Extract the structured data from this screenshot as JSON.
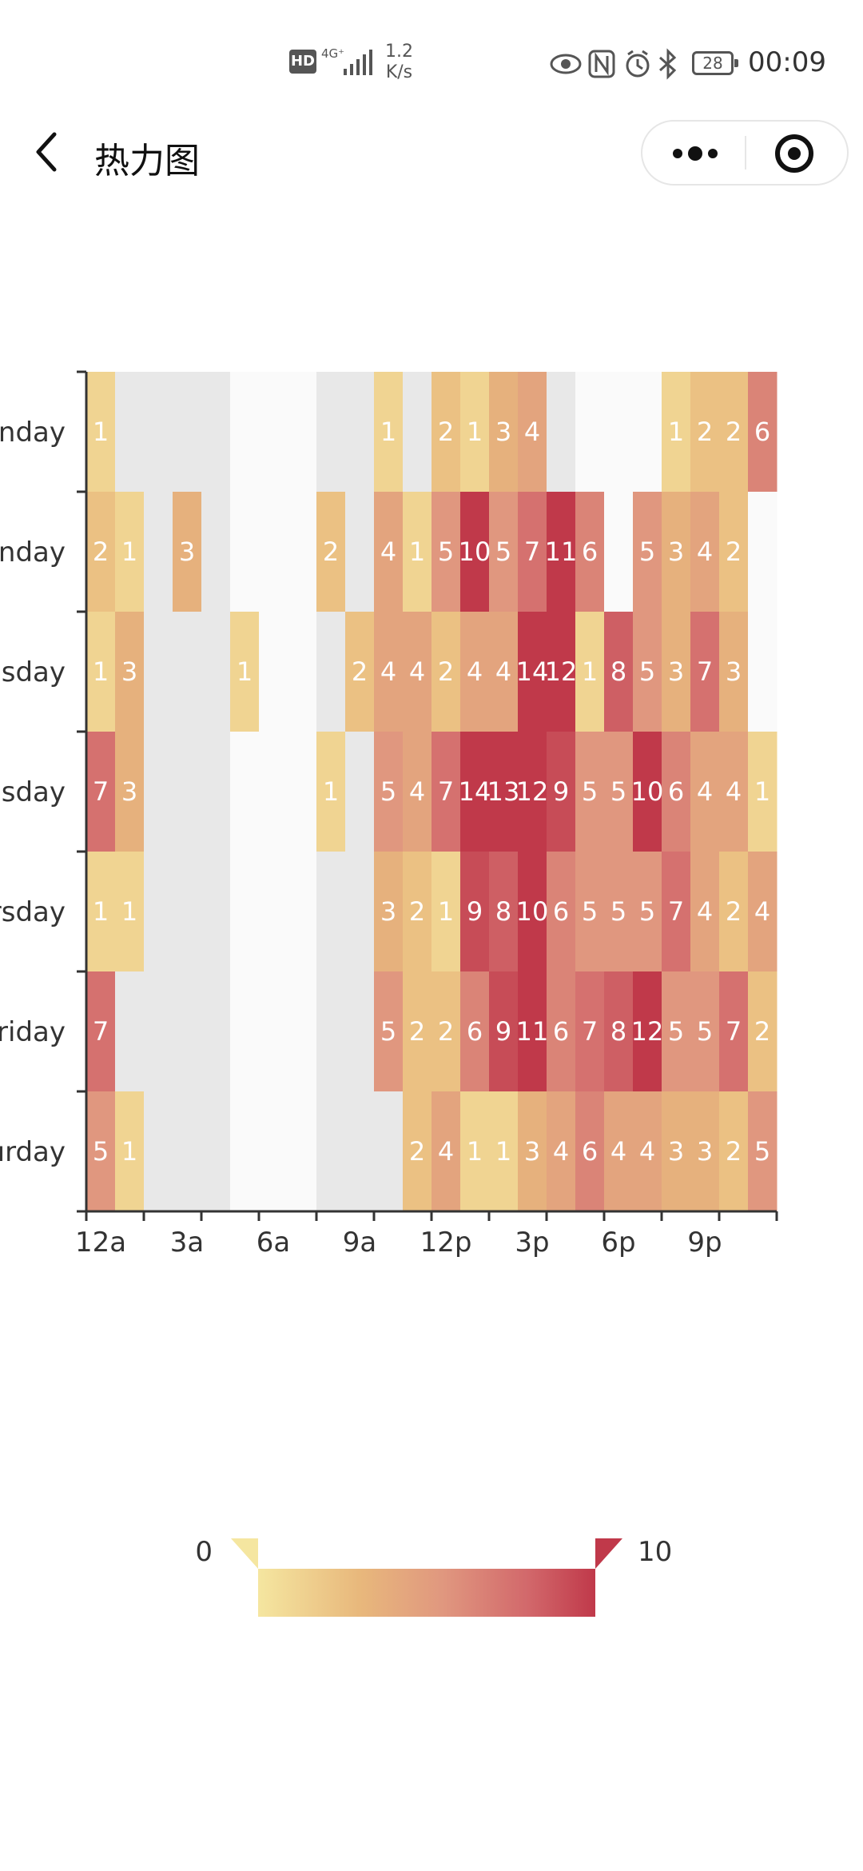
{
  "status_bar": {
    "hd": "HD",
    "network": "4G⁺",
    "speed_value": "1.2",
    "speed_unit": "K/s",
    "battery": "28",
    "time": "00:09"
  },
  "nav": {
    "title": "热力图",
    "back_icon": "chevron-left-icon",
    "more_icon": "more-dots-icon",
    "close_icon": "target-close-icon"
  },
  "chart_data": {
    "type": "heatmap",
    "x_tick_labels": [
      "12a",
      "3a",
      "6a",
      "9a",
      "12p",
      "3p",
      "6p",
      "9p"
    ],
    "y_labels_shown": [
      "nday",
      "onday",
      "esday",
      "esday",
      "rsday",
      "Friday",
      "urday"
    ],
    "hours": 24,
    "visual_map": {
      "min": 0,
      "max": 10,
      "colors": [
        "#f5e6a0",
        "#e8b87c",
        "#e0977f",
        "#d2686b",
        "#c0394a"
      ]
    },
    "empty_colors": [
      "#fafafa",
      "#e8e8e8"
    ],
    "rows": [
      [
        1,
        0,
        0,
        0,
        0,
        0,
        0,
        0,
        0,
        0,
        1,
        0,
        2,
        1,
        3,
        4,
        0,
        0,
        0,
        0,
        1,
        2,
        2,
        6
      ],
      [
        2,
        1,
        0,
        3,
        0,
        0,
        0,
        0,
        2,
        0,
        4,
        1,
        5,
        10,
        5,
        7,
        11,
        6,
        0,
        5,
        3,
        4,
        2,
        0
      ],
      [
        1,
        3,
        0,
        0,
        0,
        1,
        0,
        0,
        0,
        2,
        4,
        4,
        2,
        4,
        4,
        14,
        12,
        1,
        8,
        5,
        3,
        7,
        3,
        0
      ],
      [
        7,
        3,
        0,
        0,
        0,
        0,
        0,
        0,
        1,
        0,
        5,
        4,
        7,
        14,
        13,
        12,
        9,
        5,
        5,
        10,
        6,
        4,
        4,
        1
      ],
      [
        1,
        1,
        0,
        0,
        0,
        0,
        0,
        0,
        0,
        0,
        3,
        2,
        1,
        9,
        8,
        10,
        6,
        5,
        5,
        5,
        7,
        4,
        2,
        4
      ],
      [
        7,
        0,
        0,
        0,
        0,
        0,
        0,
        0,
        0,
        0,
        5,
        2,
        2,
        6,
        9,
        11,
        6,
        7,
        8,
        12,
        5,
        5,
        7,
        2
      ],
      [
        5,
        1,
        0,
        0,
        0,
        0,
        0,
        0,
        0,
        0,
        0,
        2,
        4,
        1,
        1,
        3,
        4,
        6,
        4,
        4,
        3,
        3,
        2,
        5
      ]
    ]
  },
  "legend": {
    "min_label": "0",
    "max_label": "10"
  }
}
